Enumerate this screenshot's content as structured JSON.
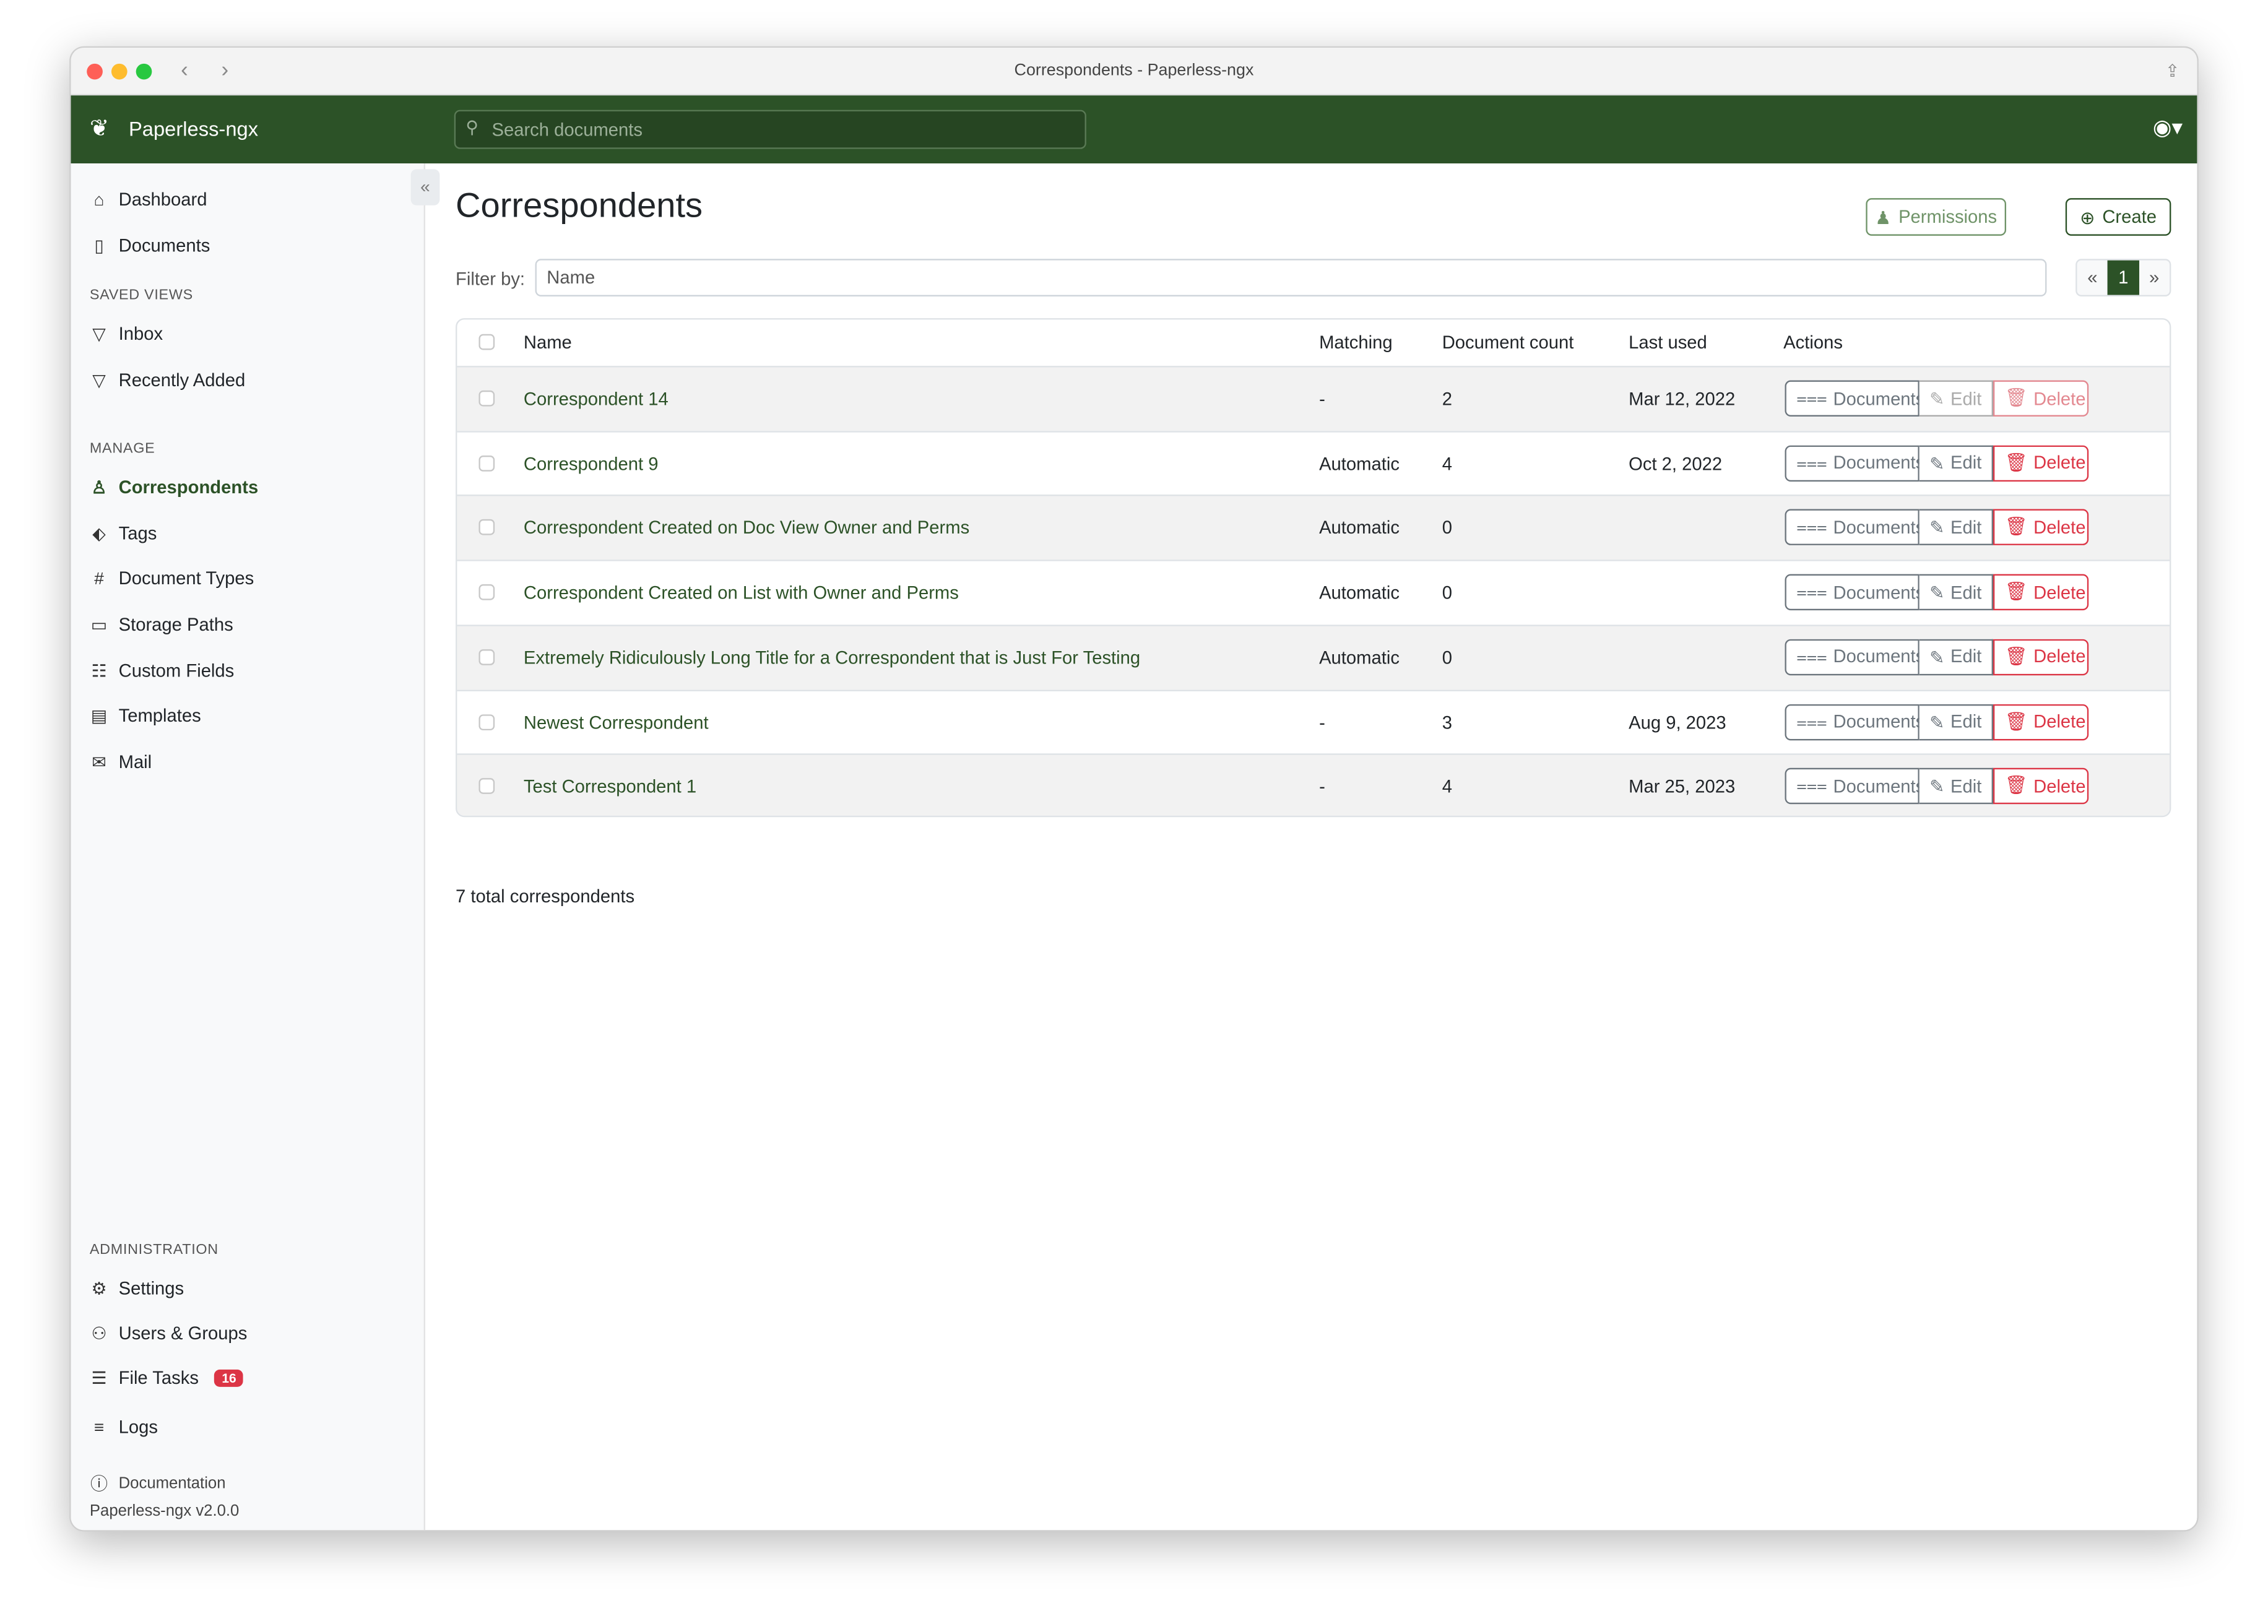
{
  "window": {
    "title": "Correspondents - Paperless-ngx"
  },
  "header": {
    "brand": "Paperless-ngx",
    "search_placeholder": "Search documents"
  },
  "sidebar": {
    "items": [
      {
        "label": "Dashboard",
        "icon": "house-icon"
      },
      {
        "label": "Documents",
        "icon": "files-icon"
      }
    ],
    "saved_views_heading": "SAVED VIEWS",
    "saved_views": [
      {
        "label": "Inbox",
        "icon": "funnel-icon"
      },
      {
        "label": "Recently Added",
        "icon": "funnel-icon"
      }
    ],
    "manage_heading": "MANAGE",
    "manage": [
      {
        "label": "Correspondents",
        "icon": "person-icon",
        "active": true
      },
      {
        "label": "Tags",
        "icon": "tags-icon"
      },
      {
        "label": "Document Types",
        "icon": "hash-icon"
      },
      {
        "label": "Storage Paths",
        "icon": "folder-icon"
      },
      {
        "label": "Custom Fields",
        "icon": "ui-radios-icon"
      },
      {
        "label": "Templates",
        "icon": "file-text-icon"
      },
      {
        "label": "Mail",
        "icon": "envelope-icon"
      }
    ],
    "admin_heading": "ADMINISTRATION",
    "admin": [
      {
        "label": "Settings",
        "icon": "gear-icon"
      },
      {
        "label": "Users & Groups",
        "icon": "people-icon"
      },
      {
        "label": "File Tasks",
        "icon": "list-task-icon",
        "badge": "16"
      },
      {
        "label": "Logs",
        "icon": "text-left-icon"
      }
    ],
    "documentation": "Documentation",
    "version": "Paperless-ngx v2.0.0"
  },
  "main": {
    "title": "Correspondents",
    "permissions_label": "Permissions",
    "create_label": "Create",
    "filter_label": "Filter by:",
    "filter_placeholder": "Name",
    "pagination": {
      "prev": "«",
      "current": "1",
      "next": "»"
    },
    "columns": [
      "Name",
      "Matching",
      "Document count",
      "Last used",
      "Actions"
    ],
    "actions": {
      "documents": "Documents",
      "edit": "Edit",
      "delete": "Delete"
    },
    "rows": [
      {
        "name": "Correspondent 14",
        "matching": "-",
        "count": "2",
        "last_used": "Mar 12, 2022",
        "disabled": true
      },
      {
        "name": "Correspondent 9",
        "matching": "Automatic",
        "count": "4",
        "last_used": "Oct 2, 2022"
      },
      {
        "name": "Correspondent Created on Doc View Owner and Perms",
        "matching": "Automatic",
        "count": "0",
        "last_used": ""
      },
      {
        "name": "Correspondent Created on List with Owner and Perms",
        "matching": "Automatic",
        "count": "0",
        "last_used": ""
      },
      {
        "name": "Extremely Ridiculously Long Title for a Correspondent that is Just For Testing",
        "matching": "Automatic",
        "count": "0",
        "last_used": ""
      },
      {
        "name": "Newest Correspondent",
        "matching": "-",
        "count": "3",
        "last_used": "Aug 9, 2023"
      },
      {
        "name": "Test Correspondent 1",
        "matching": "-",
        "count": "4",
        "last_used": "Mar 25, 2023"
      }
    ],
    "total": "7 total correspondents"
  },
  "colors": {
    "brand": "#2c5227",
    "danger": "#dc3545"
  }
}
